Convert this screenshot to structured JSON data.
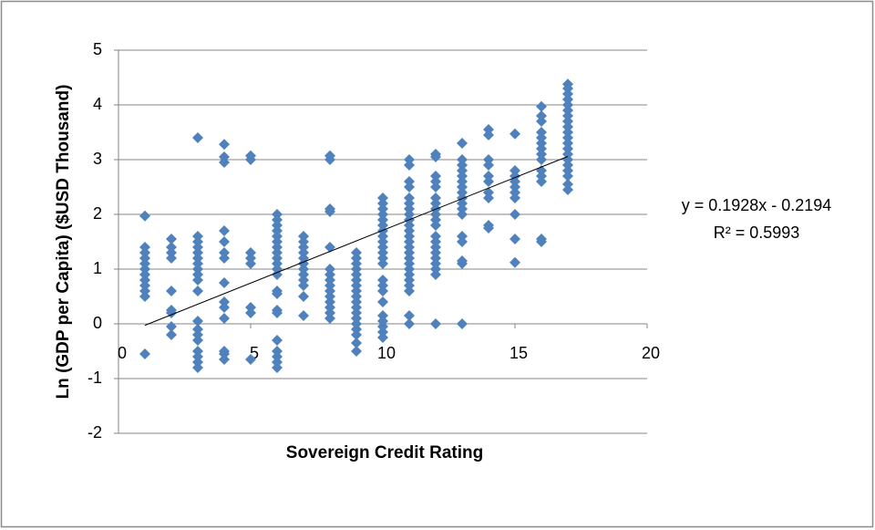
{
  "chart_data": {
    "type": "scatter",
    "x_label": "Sovereign Credit Rating",
    "y_label": "Ln (GDP per Capita) ($USD Thousand)",
    "annotations": [
      "y = 0.1928x - 0.2194",
      "R² = 0.5993"
    ],
    "color": "#4f81bd",
    "xlim": [
      0,
      20
    ],
    "xticks": [
      0,
      5,
      10,
      15,
      20
    ],
    "ylim": [
      -2,
      5
    ],
    "yticks": [
      -2,
      -1,
      0,
      1,
      2,
      3,
      4,
      5
    ],
    "grid": true,
    "trendline": {
      "x": [
        1,
        17
      ],
      "values": [
        -0.027,
        3.058
      ]
    },
    "x": [
      1,
      1,
      1,
      1,
      1,
      1,
      1,
      1,
      1,
      1,
      1,
      1,
      2,
      2,
      2,
      2,
      2,
      2,
      2,
      2,
      2,
      3,
      3,
      3,
      3,
      3,
      3,
      3,
      3,
      3,
      3,
      3,
      3,
      3,
      3,
      3,
      3,
      3,
      3,
      3,
      4,
      4,
      4,
      4,
      4,
      4,
      4,
      4,
      4,
      4,
      4,
      4,
      4,
      4,
      5,
      5,
      5,
      5,
      5,
      5,
      5,
      5,
      6,
      6,
      6,
      6,
      6,
      6,
      6,
      6,
      6,
      6,
      6,
      6,
      6,
      6,
      6,
      6,
      6,
      6,
      6,
      6,
      6,
      7,
      7,
      7,
      7,
      7,
      7,
      7,
      7,
      7,
      7,
      7,
      7,
      8,
      8,
      8,
      8,
      8,
      8,
      8,
      8,
      8,
      8,
      8,
      8,
      8,
      8,
      8,
      9,
      9,
      9,
      9,
      9,
      9,
      9,
      9,
      9,
      9,
      9,
      9,
      9,
      9,
      9,
      9,
      9,
      9,
      10,
      10,
      10,
      10,
      10,
      10,
      10,
      10,
      10,
      10,
      10,
      10,
      10,
      10,
      10,
      10,
      10,
      10,
      10,
      10,
      10,
      10,
      11,
      11,
      11,
      11,
      11,
      11,
      11,
      11,
      11,
      11,
      11,
      11,
      11,
      11,
      11,
      11,
      11,
      11,
      11,
      11,
      11,
      11,
      11,
      11,
      12,
      12,
      12,
      12,
      12,
      12,
      12,
      12,
      12,
      12,
      12,
      12,
      12,
      12,
      12,
      12,
      12,
      12,
      12,
      12,
      13,
      13,
      13,
      13,
      13,
      13,
      13,
      13,
      13,
      13,
      13,
      13,
      13,
      13,
      13,
      13,
      13,
      14,
      14,
      14,
      14,
      14,
      14,
      14,
      14,
      14,
      14,
      15,
      15,
      15,
      15,
      15,
      15,
      15,
      15,
      15,
      15,
      16,
      16,
      16,
      16,
      16,
      16,
      16,
      16,
      16,
      16,
      16,
      16,
      16,
      16,
      17,
      17,
      17,
      17,
      17,
      17,
      17,
      17,
      17,
      17,
      17,
      17,
      17,
      17,
      17,
      17,
      17,
      17,
      17,
      17
    ],
    "values": [
      -0.55,
      0.5,
      0.6,
      0.7,
      0.8,
      0.9,
      1.0,
      1.1,
      1.2,
      1.3,
      1.4,
      1.97,
      -0.2,
      -0.05,
      0.2,
      0.25,
      0.6,
      1.2,
      1.3,
      1.4,
      1.55,
      -0.8,
      -0.7,
      -0.6,
      -0.5,
      -0.3,
      -0.2,
      -0.1,
      0.05,
      0.6,
      0.8,
      0.9,
      1.0,
      1.1,
      1.2,
      1.3,
      1.4,
      1.5,
      1.6,
      3.4,
      -0.65,
      -0.55,
      -0.5,
      0.1,
      0.3,
      0.4,
      0.75,
      1.2,
      1.3,
      1.5,
      1.7,
      2.95,
      3.05,
      3.28,
      -0.65,
      0.2,
      0.3,
      1.1,
      1.2,
      1.3,
      3.0,
      3.07,
      -0.8,
      -0.7,
      -0.6,
      -0.5,
      -0.3,
      0.2,
      0.25,
      0.55,
      0.6,
      0.9,
      1.0,
      1.1,
      1.2,
      1.3,
      1.4,
      1.5,
      1.6,
      1.7,
      1.8,
      1.9,
      2.0,
      0.15,
      0.5,
      0.7,
      0.8,
      0.9,
      1.0,
      1.1,
      1.2,
      1.3,
      1.4,
      1.5,
      1.6,
      0.1,
      0.2,
      0.3,
      0.4,
      0.5,
      0.6,
      0.7,
      0.8,
      0.9,
      1.0,
      1.4,
      2.05,
      2.1,
      3.0,
      3.07,
      -0.5,
      -0.35,
      -0.2,
      -0.1,
      0,
      0.1,
      0.2,
      0.3,
      0.4,
      0.5,
      0.6,
      0.7,
      0.8,
      0.9,
      1.0,
      1.1,
      1.2,
      1.3,
      -0.25,
      -0.15,
      -0.05,
      0.05,
      0.15,
      0.4,
      0.6,
      0.7,
      0.8,
      1.1,
      1.2,
      1.3,
      1.4,
      1.5,
      1.6,
      1.7,
      1.8,
      1.9,
      2.0,
      2.1,
      2.2,
      2.3,
      0,
      0.15,
      0.6,
      0.7,
      0.8,
      0.9,
      1.0,
      1.1,
      1.2,
      1.3,
      1.4,
      1.5,
      1.6,
      1.7,
      1.8,
      1.9,
      2.0,
      2.1,
      2.2,
      2.3,
      2.5,
      2.6,
      2.9,
      3.0,
      0,
      0.9,
      1.0,
      1.1,
      1.2,
      1.3,
      1.4,
      1.5,
      1.6,
      1.8,
      1.9,
      2.0,
      2.1,
      2.2,
      2.3,
      2.5,
      2.6,
      2.7,
      3.05,
      3.1,
      0,
      1.1,
      1.15,
      1.5,
      1.6,
      2.0,
      2.1,
      2.2,
      2.3,
      2.4,
      2.5,
      2.6,
      2.7,
      2.8,
      2.9,
      3.0,
      3.3,
      1.75,
      1.8,
      2.3,
      2.4,
      2.6,
      2.7,
      2.9,
      3.0,
      3.45,
      3.55,
      1.12,
      1.55,
      2.0,
      2.3,
      2.4,
      2.5,
      2.6,
      2.7,
      2.8,
      3.47,
      1.5,
      1.55,
      2.6,
      2.7,
      2.8,
      3.0,
      3.1,
      3.2,
      3.3,
      3.4,
      3.5,
      3.7,
      3.8,
      3.97,
      2.45,
      2.55,
      2.7,
      2.8,
      2.9,
      3.0,
      3.1,
      3.2,
      3.3,
      3.4,
      3.5,
      3.6,
      3.7,
      3.8,
      3.9,
      4.0,
      4.1,
      4.2,
      4.3,
      4.38
    ]
  }
}
